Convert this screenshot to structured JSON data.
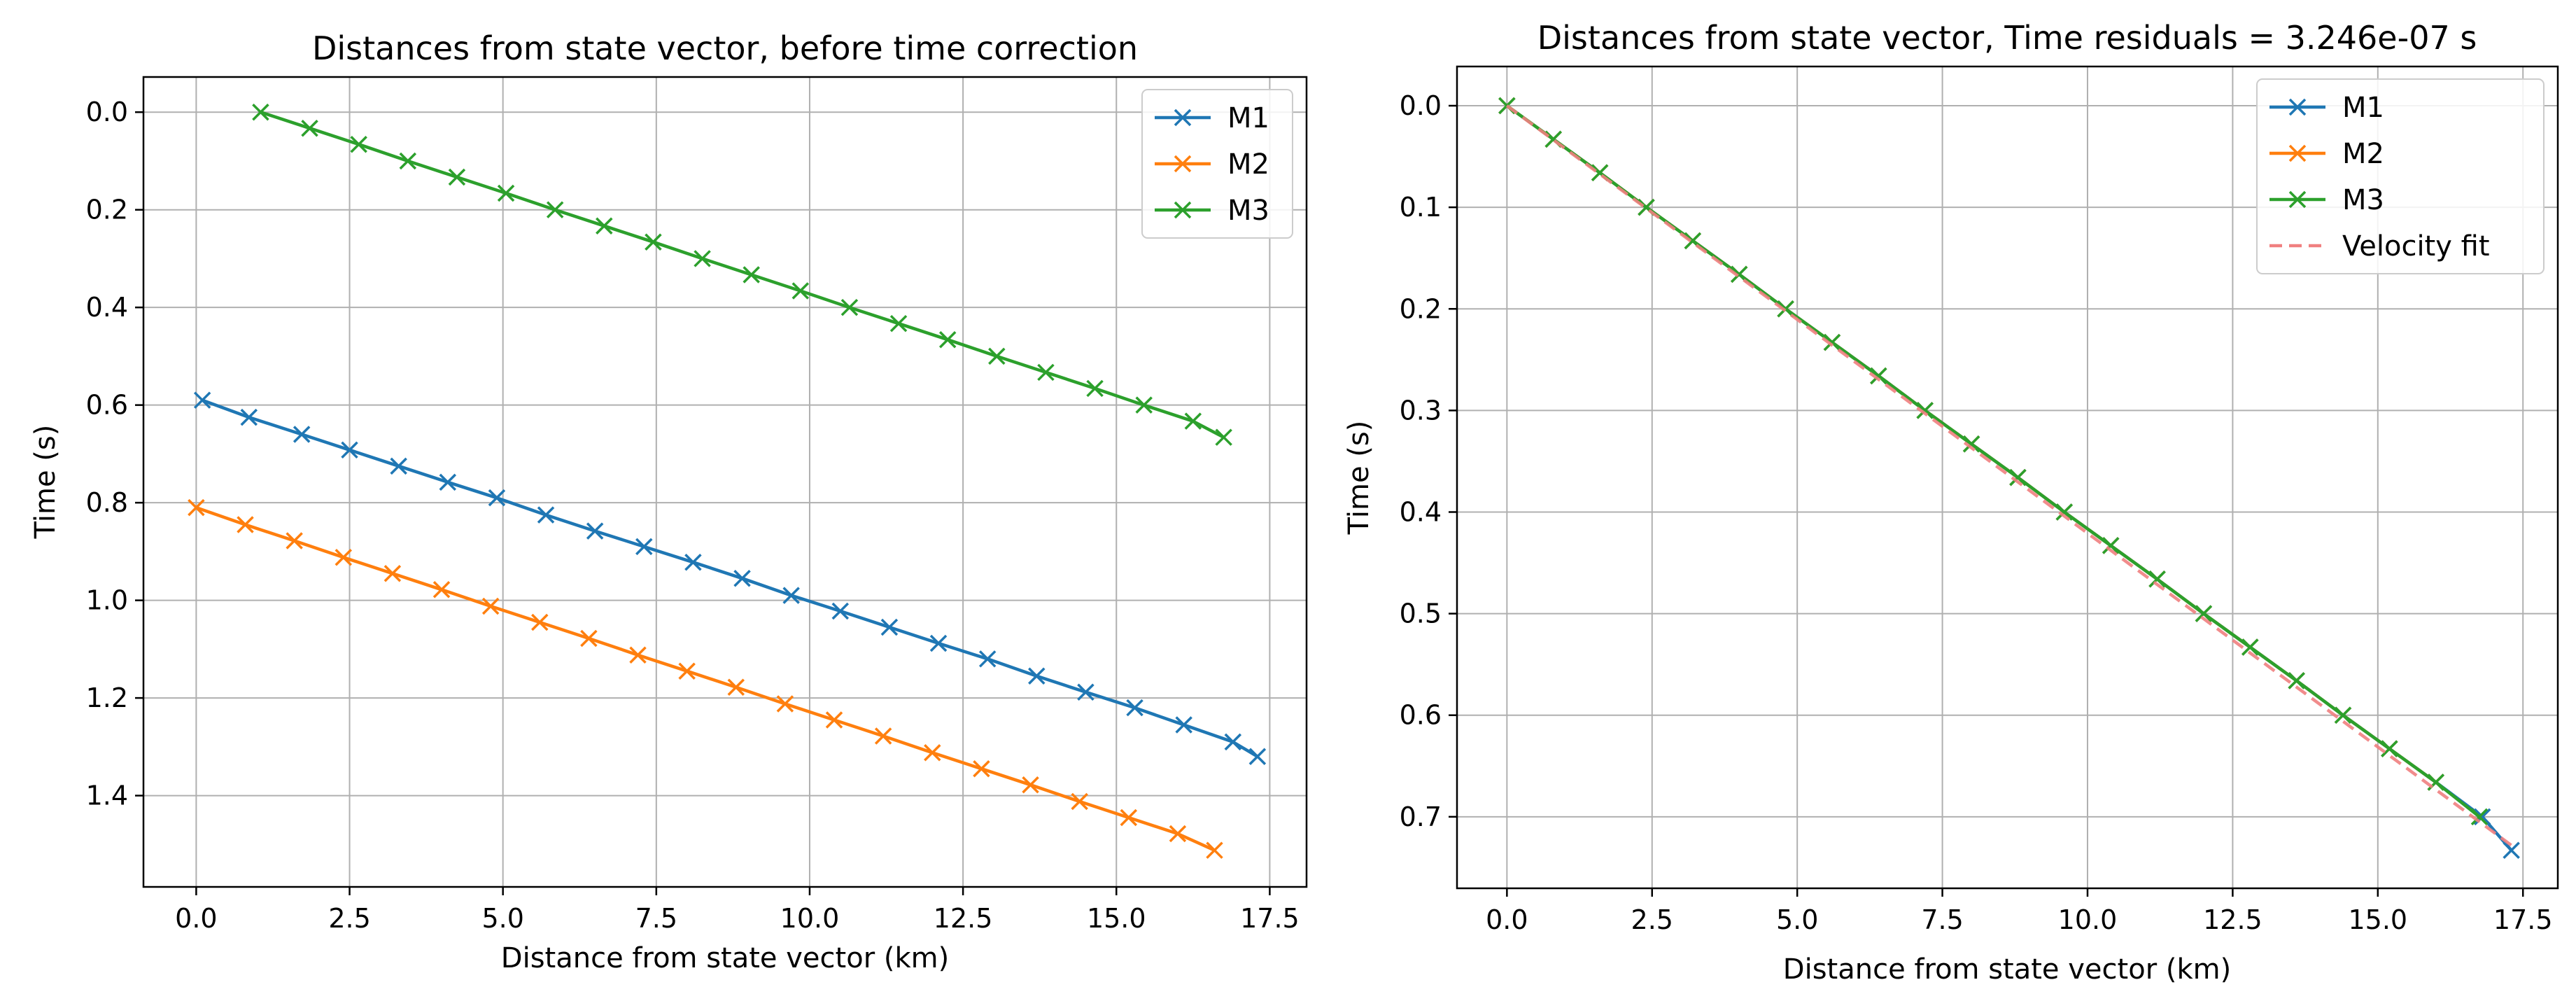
{
  "chart_data": [
    {
      "type": "line",
      "title": "Distances from state vector, before time correction",
      "xlabel": "Distance from state vector (km)",
      "ylabel": "Time (s)",
      "xlim": [
        -0.86,
        18.1
      ],
      "ylim": [
        1.587,
        -0.072
      ],
      "y_inverted": true,
      "grid": true,
      "legend_position": "top-right",
      "xticks": [
        0.0,
        2.5,
        5.0,
        7.5,
        10.0,
        12.5,
        15.0,
        17.5
      ],
      "xtick_labels": [
        "0.0",
        "2.5",
        "5.0",
        "7.5",
        "10.0",
        "12.5",
        "15.0",
        "17.5"
      ],
      "yticks": [
        0.0,
        0.2,
        0.4,
        0.6,
        0.8,
        1.0,
        1.2,
        1.4
      ],
      "ytick_labels": [
        "0.0",
        "0.2",
        "0.4",
        "0.6",
        "0.8",
        "1.0",
        "1.2",
        "1.4"
      ],
      "series": [
        {
          "name": "M1",
          "color": "#1f77b4",
          "linestyle": "solid",
          "marker": "x",
          "x": [
            0.1,
            0.86,
            1.72,
            2.5,
            3.3,
            4.1,
            4.9,
            5.7,
            6.5,
            7.3,
            8.1,
            8.9,
            9.7,
            10.5,
            11.3,
            12.1,
            12.9,
            13.7,
            14.5,
            15.3,
            16.1,
            16.9,
            17.3
          ],
          "y": [
            0.59,
            0.625,
            0.66,
            0.692,
            0.725,
            0.758,
            0.79,
            0.825,
            0.858,
            0.89,
            0.922,
            0.955,
            0.99,
            1.022,
            1.055,
            1.088,
            1.12,
            1.155,
            1.188,
            1.22,
            1.255,
            1.29,
            1.32
          ]
        },
        {
          "name": "M2",
          "color": "#ff7f0e",
          "linestyle": "solid",
          "marker": "x",
          "x": [
            0.0,
            0.8,
            1.6,
            2.4,
            3.2,
            4.0,
            4.8,
            5.6,
            6.4,
            7.2,
            8.0,
            8.8,
            9.6,
            10.4,
            11.2,
            12.0,
            12.8,
            13.6,
            14.4,
            15.2,
            16.0,
            16.6
          ],
          "y": [
            0.81,
            0.845,
            0.878,
            0.912,
            0.945,
            0.978,
            1.012,
            1.045,
            1.078,
            1.112,
            1.145,
            1.178,
            1.212,
            1.245,
            1.278,
            1.312,
            1.345,
            1.378,
            1.412,
            1.445,
            1.478,
            1.512
          ]
        },
        {
          "name": "M3",
          "color": "#2ca02c",
          "linestyle": "solid",
          "marker": "x",
          "x": [
            1.05,
            1.85,
            2.65,
            3.45,
            4.25,
            5.05,
            5.85,
            6.65,
            7.45,
            8.25,
            9.05,
            9.85,
            10.65,
            11.45,
            12.25,
            13.05,
            13.85,
            14.65,
            15.45,
            16.25,
            16.75
          ],
          "y": [
            0.0,
            0.033,
            0.066,
            0.1,
            0.133,
            0.166,
            0.2,
            0.233,
            0.266,
            0.3,
            0.333,
            0.366,
            0.4,
            0.433,
            0.466,
            0.5,
            0.533,
            0.566,
            0.6,
            0.633,
            0.666
          ]
        }
      ]
    },
    {
      "type": "line",
      "title": "Distances from state vector, Time residuals = 3.246e-07 s",
      "xlabel": "Distance from state vector (km)",
      "ylabel": "Time (s)",
      "xlim": [
        -0.86,
        18.1
      ],
      "ylim": [
        0.7704,
        -0.0386
      ],
      "y_inverted": true,
      "grid": true,
      "legend_position": "top-right",
      "xticks": [
        0.0,
        2.5,
        5.0,
        7.5,
        10.0,
        12.5,
        15.0,
        17.5
      ],
      "xtick_labels": [
        "0.0",
        "2.5",
        "5.0",
        "7.5",
        "10.0",
        "12.5",
        "15.0",
        "17.5"
      ],
      "yticks": [
        0.0,
        0.1,
        0.2,
        0.3,
        0.4,
        0.5,
        0.6,
        0.7
      ],
      "ytick_labels": [
        "0.0",
        "0.1",
        "0.2",
        "0.3",
        "0.4",
        "0.5",
        "0.6",
        "0.7"
      ],
      "series": [
        {
          "name": "M1",
          "color": "#1f77b4",
          "linestyle": "solid",
          "marker": "x",
          "x": [
            0.0,
            0.8,
            1.6,
            2.4,
            3.2,
            4.0,
            4.8,
            5.6,
            6.4,
            7.2,
            8.0,
            8.8,
            9.6,
            10.4,
            11.2,
            12.0,
            12.8,
            13.6,
            14.4,
            15.2,
            16.0,
            16.8,
            17.3
          ],
          "y": [
            0.0,
            0.033,
            0.066,
            0.1,
            0.133,
            0.166,
            0.2,
            0.233,
            0.266,
            0.3,
            0.333,
            0.366,
            0.4,
            0.433,
            0.466,
            0.5,
            0.533,
            0.566,
            0.6,
            0.633,
            0.666,
            0.7,
            0.733
          ]
        },
        {
          "name": "M2",
          "color": "#ff7f0e",
          "linestyle": "solid",
          "marker": "x",
          "x": [
            0.0,
            0.8,
            1.6,
            2.4,
            3.2,
            4.0,
            4.8,
            5.6,
            6.4,
            7.2,
            8.0,
            8.8,
            9.6,
            10.4,
            11.2,
            12.0,
            12.8,
            13.6,
            14.4,
            15.2,
            16.0
          ],
          "y": [
            0.0,
            0.033,
            0.066,
            0.1,
            0.133,
            0.166,
            0.2,
            0.233,
            0.266,
            0.3,
            0.333,
            0.366,
            0.4,
            0.433,
            0.466,
            0.5,
            0.533,
            0.566,
            0.6,
            0.633,
            0.666
          ]
        },
        {
          "name": "M3",
          "color": "#2ca02c",
          "linestyle": "solid",
          "marker": "x",
          "x": [
            0.0,
            0.8,
            1.6,
            2.4,
            3.2,
            4.0,
            4.8,
            5.6,
            6.4,
            7.2,
            8.0,
            8.8,
            9.6,
            10.4,
            11.2,
            12.0,
            12.8,
            13.6,
            14.4,
            15.2,
            16.0,
            16.75
          ],
          "y": [
            0.0,
            0.033,
            0.066,
            0.1,
            0.133,
            0.166,
            0.2,
            0.233,
            0.266,
            0.3,
            0.333,
            0.366,
            0.4,
            0.433,
            0.466,
            0.5,
            0.533,
            0.566,
            0.6,
            0.633,
            0.666,
            0.7
          ]
        },
        {
          "name": "Velocity fit",
          "color": "#f08080",
          "linestyle": "dashed",
          "marker": "none",
          "x": [
            0.0,
            17.3
          ],
          "y": [
            0.0,
            0.728
          ]
        }
      ]
    }
  ]
}
